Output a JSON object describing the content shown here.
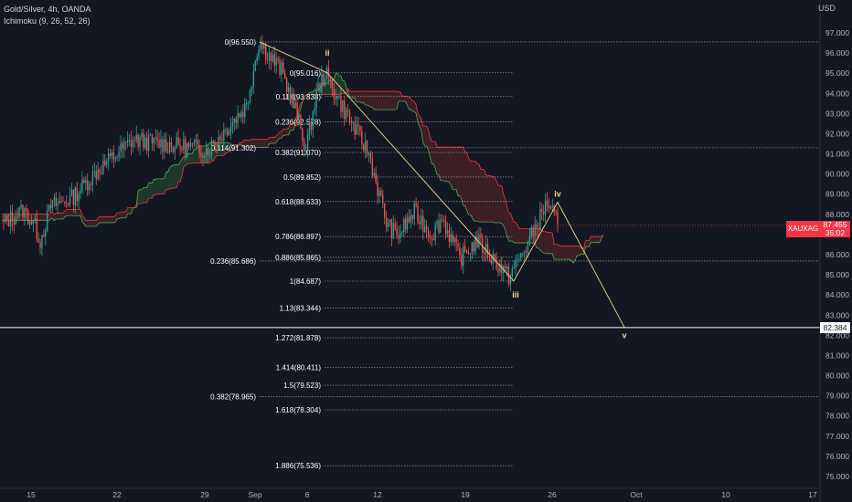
{
  "header": {
    "title": "Gold/Silver, 4h, OANDA",
    "indicator": "Ichimoku (9, 26, 52, 26)"
  },
  "currency": "USD",
  "symbol_tag": "XAUXAG",
  "last_price": "87.455",
  "countdown": "35:02",
  "horizontal_line_price": "82.384",
  "colors": {
    "background": "#131722",
    "up": "#26a69a",
    "down": "#ef5350",
    "cloud_bull": "#1f3a2c",
    "cloud_bear": "#3e1f26",
    "span_a": "#4caf50",
    "span_b": "#f23645",
    "wave": "#f2d98a",
    "fib": "#d1d4dc"
  },
  "chart_data": {
    "type": "candlestick",
    "y_axis": {
      "min": 74.5,
      "max": 97.8,
      "ticks": [
        75,
        76,
        77,
        78,
        79,
        80,
        81,
        82,
        83,
        84,
        85,
        86,
        87,
        88,
        89,
        90,
        91,
        92,
        93,
        94,
        95,
        96,
        97
      ]
    },
    "x_axis": {
      "labels": [
        "15",
        "22",
        "29",
        "Sep",
        "6",
        "12",
        "19",
        "26",
        "Oct",
        "10",
        "17"
      ]
    },
    "wave_labels": [
      {
        "text": "ii",
        "price": 96.0
      },
      {
        "text": "iii",
        "price": 84.0
      },
      {
        "text": "iv",
        "price": 89.0
      },
      {
        "text": "v",
        "price": 82.0
      }
    ],
    "wave_path": [
      {
        "date": "Sep 1",
        "price": 96.55
      },
      {
        "date": "Sep 7",
        "price": 95.02
      },
      {
        "date": "Sep 22",
        "price": 84.69
      },
      {
        "date": "Sep 26",
        "price": 88.6
      },
      {
        "date": "Sep 30",
        "price": 82.4
      }
    ],
    "fib_sets": [
      {
        "label_side": "left",
        "levels": [
          {
            "label": "0(96.550)",
            "price": 96.55
          },
          {
            "label": "0.114(91.302)",
            "price": 91.302
          },
          {
            "label": "0.236(85.686)",
            "price": 85.686
          },
          {
            "label": "0.382(78.965)",
            "price": 78.965
          }
        ]
      },
      {
        "label_side": "left",
        "levels": [
          {
            "label": "0(95.016)",
            "price": 95.016
          },
          {
            "label": "0.114(93.838)",
            "price": 93.838
          },
          {
            "label": "0.236(92.578)",
            "price": 92.578
          },
          {
            "label": "0.382(91.070)",
            "price": 91.07
          },
          {
            "label": "0.5(89.852)",
            "price": 89.852
          },
          {
            "label": "0.618(88.633)",
            "price": 88.633
          },
          {
            "label": "0.786(86.897)",
            "price": 86.897
          },
          {
            "label": "0.886(85.865)",
            "price": 85.865
          },
          {
            "label": "1(84.687)",
            "price": 84.687
          },
          {
            "label": "1.13(83.344)",
            "price": 83.344
          },
          {
            "label": "1.272(81.878)",
            "price": 81.878
          },
          {
            "label": "1.414(80.411)",
            "price": 80.411
          },
          {
            "label": "1.5(79.523)",
            "price": 79.523
          },
          {
            "label": "1.618(78.304)",
            "price": 78.304
          },
          {
            "label": "1.886(75.536)",
            "price": 75.536
          }
        ]
      }
    ],
    "key_prices": {
      "start": 87.5,
      "low1": 86.7,
      "rally_high": 96.55,
      "wave_ii_high": 95.02,
      "wave_iii_low": 84.69,
      "wave_iv_high": 88.6,
      "last": 87.455
    }
  }
}
